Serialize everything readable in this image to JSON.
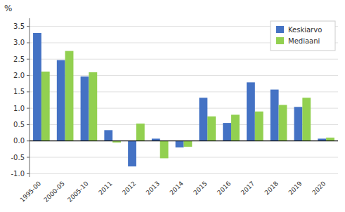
{
  "chart_data": {
    "type": "bar",
    "ylabel": "%",
    "categories": [
      "1995-00",
      "2000-05",
      "2005-10",
      "2011",
      "2012",
      "2013",
      "2014",
      "2015",
      "2016",
      "2017",
      "2018",
      "2019",
      "2020"
    ],
    "series": [
      {
        "name": "Keskiarvo",
        "color": "#4472c4",
        "values": [
          3.3,
          2.47,
          1.97,
          0.33,
          -0.78,
          0.07,
          -0.2,
          1.32,
          0.55,
          1.79,
          1.57,
          1.04,
          0.07
        ]
      },
      {
        "name": "Mediaani",
        "color": "#92d050",
        "values": [
          2.12,
          2.75,
          2.1,
          -0.05,
          0.53,
          -0.53,
          -0.18,
          0.75,
          0.8,
          0.9,
          1.1,
          1.32,
          0.1
        ]
      }
    ],
    "ylim": [
      -1.1,
      3.75
    ],
    "yticks": [
      {
        "value": -1.0,
        "label": "-1.0"
      },
      -0.5,
      {
        "value": 0.0,
        "label": "0.0"
      },
      0.5,
      {
        "value": 1.0,
        "label": "1.0"
      },
      1.5,
      {
        "value": 2.0,
        "label": "2.0"
      },
      2.5,
      {
        "value": 3.0,
        "label": "3.0"
      },
      3.5
    ],
    "grid": true,
    "legend": "upper right"
  }
}
